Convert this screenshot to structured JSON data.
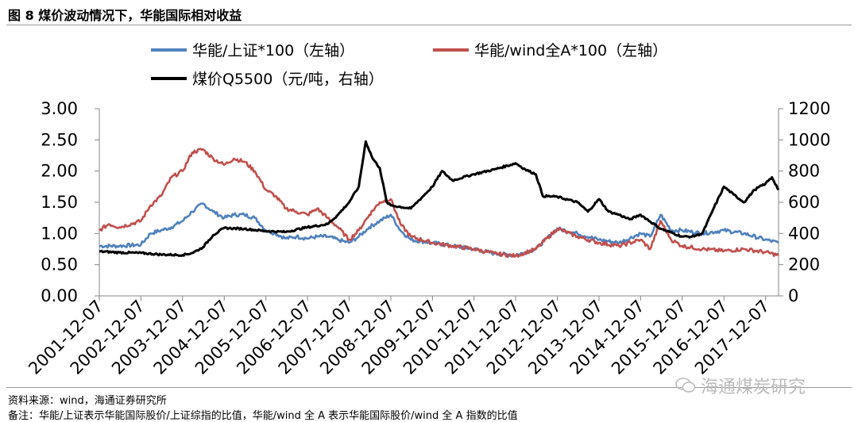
{
  "figure": {
    "title": "图 8 煤价波动情况下，华能国际相对收益",
    "source": "资料来源：wind，海通证券研究所",
    "note": "备注：华能/上证表示华能国际股价/上证综指的比值，华能/wind 全 A 表示华能国际股价/wind 全 A 指数的比值",
    "watermark": "海通煤炭研究",
    "watermark_icon": "wechat-icon"
  },
  "chart_data": {
    "type": "line",
    "title": "",
    "xlabel": "",
    "ylabel": "",
    "x_ticks": [
      "2001-12-07",
      "2002-12-07",
      "2003-12-07",
      "2004-12-07",
      "2005-12-07",
      "2006-12-07",
      "2007-12-07",
      "2008-12-07",
      "2009-12-07",
      "2010-12-07",
      "2011-12-07",
      "2012-12-07",
      "2013-12-07",
      "2014-12-07",
      "2015-12-07",
      "2016-12-07",
      "2017-12-07"
    ],
    "x_range": [
      "2001-12-07",
      "2018-03-31"
    ],
    "y_left": {
      "range": [
        0,
        3.0
      ],
      "ticks": [
        "0.00",
        "0.50",
        "1.00",
        "1.50",
        "2.00",
        "2.50",
        "3.00"
      ]
    },
    "y_right": {
      "range": [
        0,
        1200
      ],
      "ticks": [
        "0",
        "200",
        "400",
        "600",
        "800",
        "1000",
        "1200"
      ]
    },
    "grid": false,
    "legend_position": "top",
    "series": [
      {
        "name": "华能/上证*100（左轴）",
        "axis": "left",
        "color": "#4f81bd",
        "points": [
          [
            "2001-12-07",
            0.8
          ],
          [
            "2002-06-01",
            0.8
          ],
          [
            "2002-12-07",
            0.82
          ],
          [
            "2003-03-01",
            1.0
          ],
          [
            "2003-06-01",
            1.05
          ],
          [
            "2003-09-01",
            1.1
          ],
          [
            "2003-12-07",
            1.2
          ],
          [
            "2004-03-01",
            1.35
          ],
          [
            "2004-06-01",
            1.48
          ],
          [
            "2004-09-01",
            1.35
          ],
          [
            "2004-12-07",
            1.25
          ],
          [
            "2005-03-01",
            1.3
          ],
          [
            "2005-06-01",
            1.3
          ],
          [
            "2005-09-01",
            1.25
          ],
          [
            "2005-12-07",
            1.05
          ],
          [
            "2006-03-01",
            1.0
          ],
          [
            "2006-06-01",
            0.92
          ],
          [
            "2006-09-01",
            0.95
          ],
          [
            "2006-12-07",
            0.92
          ],
          [
            "2007-03-01",
            0.95
          ],
          [
            "2007-06-01",
            0.95
          ],
          [
            "2007-09-01",
            0.9
          ],
          [
            "2007-12-07",
            0.85
          ],
          [
            "2008-03-01",
            0.95
          ],
          [
            "2008-06-01",
            1.1
          ],
          [
            "2008-09-01",
            1.2
          ],
          [
            "2008-12-07",
            1.3
          ],
          [
            "2009-03-01",
            1.05
          ],
          [
            "2009-06-01",
            0.9
          ],
          [
            "2009-12-07",
            0.85
          ],
          [
            "2010-06-01",
            0.8
          ],
          [
            "2010-12-07",
            0.75
          ],
          [
            "2011-06-01",
            0.68
          ],
          [
            "2011-12-07",
            0.65
          ],
          [
            "2012-06-01",
            0.75
          ],
          [
            "2012-12-07",
            1.08
          ],
          [
            "2013-06-01",
            1.0
          ],
          [
            "2013-12-07",
            0.9
          ],
          [
            "2014-06-01",
            0.85
          ],
          [
            "2014-12-07",
            1.0
          ],
          [
            "2015-03-01",
            0.95
          ],
          [
            "2015-06-01",
            1.3
          ],
          [
            "2015-09-01",
            1.05
          ],
          [
            "2015-12-07",
            1.05
          ],
          [
            "2016-06-01",
            1.0
          ],
          [
            "2016-12-07",
            1.05
          ],
          [
            "2017-06-01",
            1.0
          ],
          [
            "2017-12-07",
            0.9
          ],
          [
            "2018-03-31",
            0.85
          ]
        ]
      },
      {
        "name": "华能/wind全A*100（左轴）",
        "axis": "left",
        "color": "#c0504d",
        "points": [
          [
            "2001-12-07",
            1.05
          ],
          [
            "2002-03-01",
            1.15
          ],
          [
            "2002-06-01",
            1.1
          ],
          [
            "2002-12-07",
            1.2
          ],
          [
            "2003-03-01",
            1.45
          ],
          [
            "2003-06-01",
            1.6
          ],
          [
            "2003-09-01",
            1.9
          ],
          [
            "2003-12-07",
            2.0
          ],
          [
            "2004-03-01",
            2.3
          ],
          [
            "2004-06-01",
            2.35
          ],
          [
            "2004-09-01",
            2.2
          ],
          [
            "2004-12-07",
            2.1
          ],
          [
            "2005-03-01",
            2.2
          ],
          [
            "2005-06-01",
            2.15
          ],
          [
            "2005-09-01",
            2.0
          ],
          [
            "2005-12-07",
            1.7
          ],
          [
            "2006-03-01",
            1.6
          ],
          [
            "2006-06-01",
            1.4
          ],
          [
            "2006-09-01",
            1.35
          ],
          [
            "2006-12-07",
            1.3
          ],
          [
            "2007-03-01",
            1.4
          ],
          [
            "2007-06-01",
            1.25
          ],
          [
            "2007-09-01",
            1.1
          ],
          [
            "2007-12-07",
            0.9
          ],
          [
            "2008-03-01",
            1.05
          ],
          [
            "2008-06-01",
            1.3
          ],
          [
            "2008-09-01",
            1.5
          ],
          [
            "2008-12-07",
            1.55
          ],
          [
            "2009-03-01",
            1.15
          ],
          [
            "2009-06-01",
            0.95
          ],
          [
            "2009-12-07",
            0.85
          ],
          [
            "2010-06-01",
            0.8
          ],
          [
            "2010-12-07",
            0.75
          ],
          [
            "2011-06-01",
            0.68
          ],
          [
            "2011-12-07",
            0.64
          ],
          [
            "2012-06-01",
            0.75
          ],
          [
            "2012-12-07",
            1.08
          ],
          [
            "2013-06-01",
            0.95
          ],
          [
            "2013-12-07",
            0.85
          ],
          [
            "2014-06-01",
            0.8
          ],
          [
            "2014-12-07",
            0.9
          ],
          [
            "2015-03-01",
            0.75
          ],
          [
            "2015-06-01",
            1.2
          ],
          [
            "2015-09-01",
            0.9
          ],
          [
            "2015-12-07",
            0.8
          ],
          [
            "2016-06-01",
            0.75
          ],
          [
            "2016-12-07",
            0.72
          ],
          [
            "2017-06-01",
            0.75
          ],
          [
            "2017-12-07",
            0.7
          ],
          [
            "2018-03-31",
            0.65
          ]
        ]
      },
      {
        "name": "煤价Q5500（元/吨，右轴）",
        "axis": "right",
        "color": "#000000",
        "points": [
          [
            "2001-12-07",
            285
          ],
          [
            "2002-06-01",
            278
          ],
          [
            "2002-12-07",
            275
          ],
          [
            "2003-06-01",
            265
          ],
          [
            "2003-12-07",
            262
          ],
          [
            "2004-03-01",
            275
          ],
          [
            "2004-06-01",
            310
          ],
          [
            "2004-09-01",
            390
          ],
          [
            "2004-12-07",
            435
          ],
          [
            "2005-06-01",
            430
          ],
          [
            "2005-12-07",
            415
          ],
          [
            "2006-06-01",
            410
          ],
          [
            "2006-12-07",
            440
          ],
          [
            "2007-06-01",
            460
          ],
          [
            "2007-09-01",
            520
          ],
          [
            "2007-12-07",
            600
          ],
          [
            "2008-03-01",
            700
          ],
          [
            "2008-05-01",
            990
          ],
          [
            "2008-07-01",
            880
          ],
          [
            "2008-09-01",
            820
          ],
          [
            "2008-11-01",
            600
          ],
          [
            "2008-12-07",
            580
          ],
          [
            "2009-06-01",
            560
          ],
          [
            "2009-12-07",
            700
          ],
          [
            "2010-03-01",
            800
          ],
          [
            "2010-06-01",
            740
          ],
          [
            "2010-09-01",
            760
          ],
          [
            "2010-12-07",
            780
          ],
          [
            "2011-06-01",
            810
          ],
          [
            "2011-12-07",
            850
          ],
          [
            "2012-03-01",
            810
          ],
          [
            "2012-06-01",
            780
          ],
          [
            "2012-08-01",
            640
          ],
          [
            "2012-12-07",
            635
          ],
          [
            "2013-06-01",
            600
          ],
          [
            "2013-09-01",
            540
          ],
          [
            "2013-12-07",
            620
          ],
          [
            "2014-03-01",
            540
          ],
          [
            "2014-06-01",
            520
          ],
          [
            "2014-09-01",
            490
          ],
          [
            "2014-12-07",
            520
          ],
          [
            "2015-06-01",
            430
          ],
          [
            "2015-12-07",
            380
          ],
          [
            "2016-03-01",
            380
          ],
          [
            "2016-06-01",
            400
          ],
          [
            "2016-09-01",
            550
          ],
          [
            "2016-12-07",
            700
          ],
          [
            "2017-03-01",
            650
          ],
          [
            "2017-06-01",
            600
          ],
          [
            "2017-09-01",
            680
          ],
          [
            "2017-12-07",
            720
          ],
          [
            "2018-02-01",
            760
          ],
          [
            "2018-03-31",
            680
          ]
        ]
      }
    ]
  }
}
